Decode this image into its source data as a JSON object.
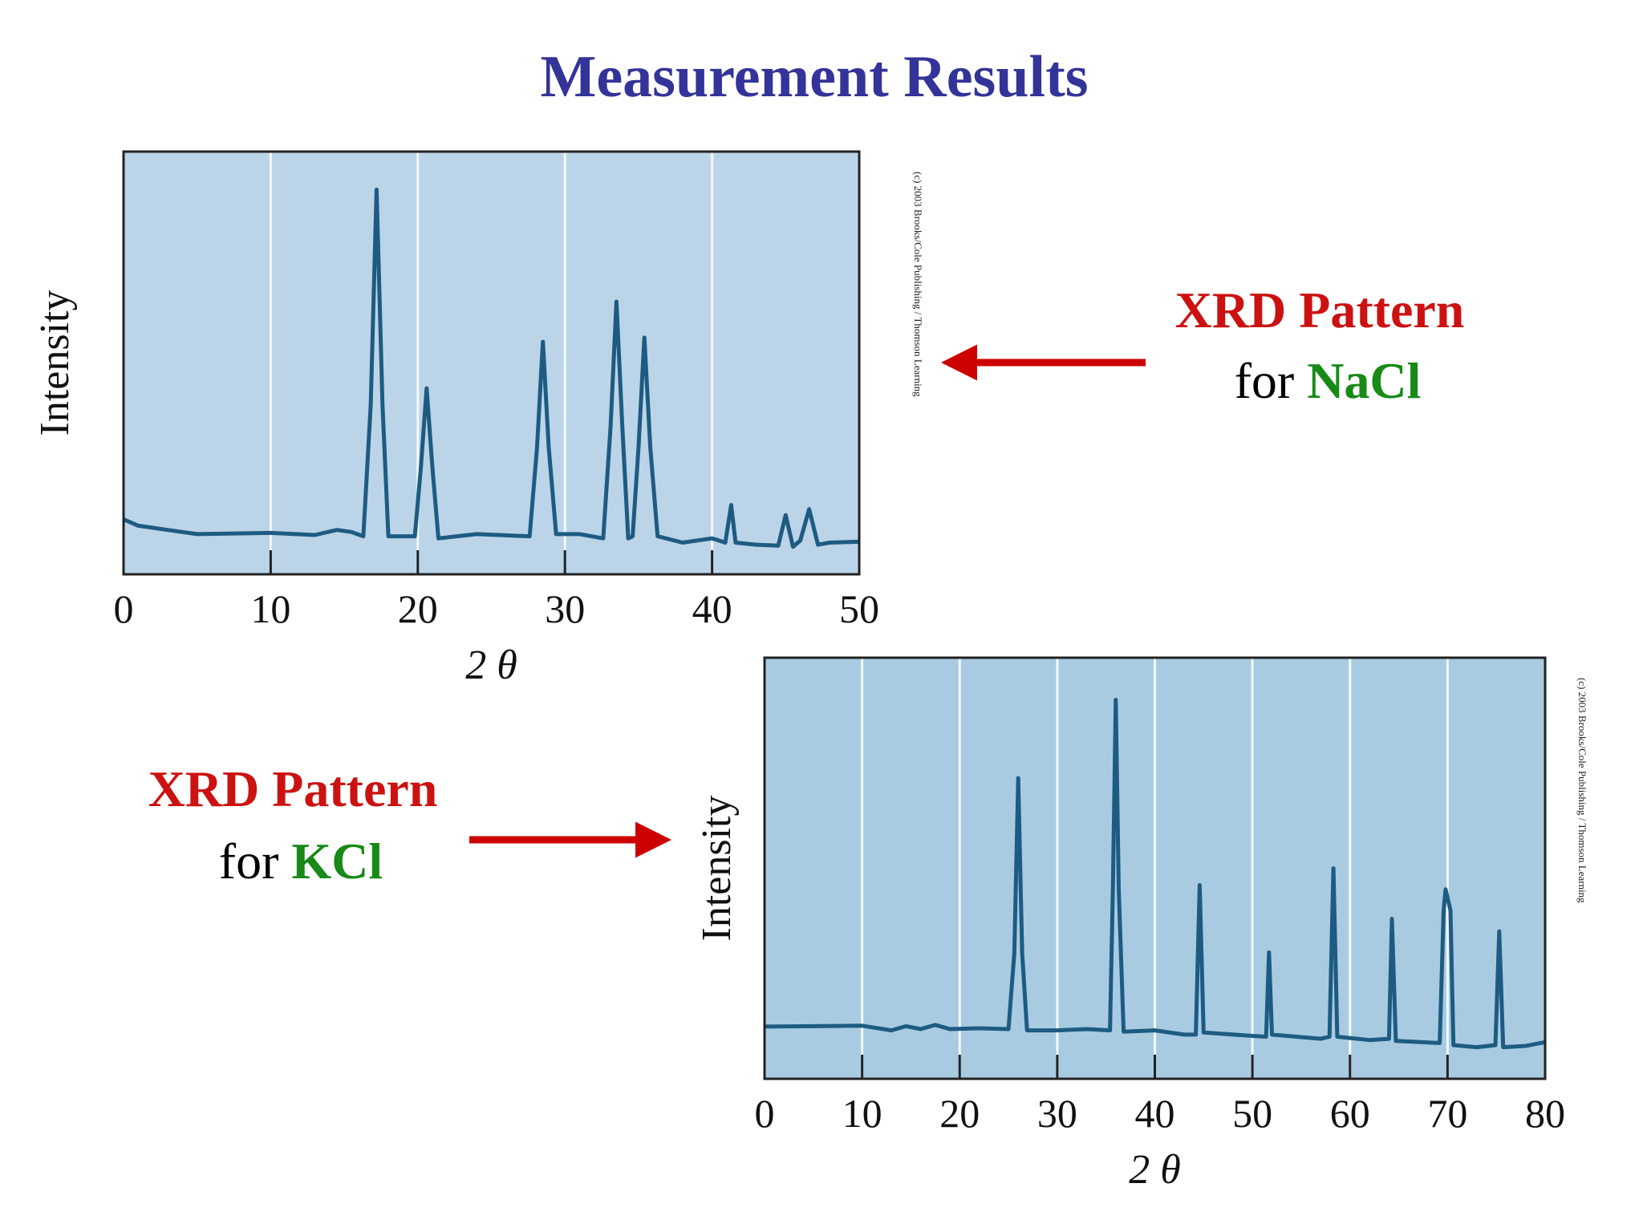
{
  "title": "Measurement Results",
  "annotations": [
    {
      "label": "XRD Pattern",
      "prefix": "for",
      "compound": "NaCl"
    },
    {
      "label": "XRD Pattern",
      "prefix": "for",
      "compound": "KCl"
    }
  ],
  "chart_data": [
    {
      "type": "line",
      "ylabel": "Intensity",
      "xlabel": "2 θ",
      "credit": "(c) 2003 Brooks/Cole Publishing / Thomson Learning",
      "color": "#1d5b82",
      "background": "#bcd4e7",
      "grid": true,
      "xlim": [
        0,
        50
      ],
      "xticks": [
        0,
        10,
        20,
        30,
        40,
        50
      ],
      "ylim": [
        0,
        100
      ],
      "x": [
        0,
        1,
        3,
        5,
        10,
        13,
        14.5,
        15.5,
        16.3,
        16.8,
        17.2,
        17.6,
        18,
        19.8,
        20.2,
        20.6,
        21,
        21.4,
        24,
        27.6,
        28.1,
        28.5,
        28.9,
        29.4,
        31,
        32.6,
        33.1,
        33.5,
        33.9,
        34.3,
        34.6,
        35,
        35.4,
        35.8,
        36.3,
        38,
        40,
        40.9,
        41.3,
        41.6,
        43,
        44.5,
        45,
        45.5,
        46,
        46.6,
        47.2,
        48,
        50
      ],
      "values": [
        13,
        11.5,
        10.5,
        9.5,
        9.8,
        9.3,
        10.5,
        10,
        9,
        40,
        91,
        40,
        9,
        9,
        25,
        44,
        25,
        8.5,
        9.5,
        9,
        30,
        55,
        30,
        9.5,
        9.5,
        8.5,
        35,
        64.5,
        35,
        8.5,
        9,
        30,
        56,
        30,
        9,
        7.5,
        8.5,
        7.5,
        16.4,
        7.5,
        7,
        6.8,
        14,
        6.5,
        8,
        15.4,
        7,
        7.5,
        7.7
      ]
    },
    {
      "type": "line",
      "ylabel": "Intensity",
      "xlabel": "2 θ",
      "credit": "(c) 2003 Brooks/Cole Publishing / Thomson Learning",
      "color": "#1d5b82",
      "background": "#a9cbe1",
      "grid": true,
      "xlim": [
        0,
        80
      ],
      "xticks": [
        0,
        10,
        20,
        30,
        40,
        50,
        60,
        70,
        80
      ],
      "ylim": [
        0,
        100
      ],
      "x": [
        0,
        10,
        13,
        14.5,
        16,
        17.5,
        19,
        22,
        25,
        25.6,
        26,
        26.4,
        26.9,
        30,
        33,
        35.4,
        35.7,
        36,
        36.3,
        36.8,
        40,
        43,
        44.2,
        44.6,
        45,
        50,
        51.4,
        51.7,
        52,
        57,
        57.9,
        58.3,
        58.7,
        62,
        64,
        64.3,
        64.7,
        69.2,
        69.6,
        69.8,
        70.3,
        70.6,
        73,
        74.9,
        75.3,
        75.7,
        78,
        80
      ],
      "values": [
        12.4,
        12.6,
        11.5,
        12.5,
        11.8,
        12.8,
        11.8,
        12,
        11.8,
        30,
        71.4,
        30,
        11.5,
        11.5,
        11.8,
        11.5,
        45,
        90,
        45,
        11.2,
        11.5,
        10.5,
        10.5,
        46,
        11,
        10.2,
        10,
        30,
        10.5,
        9.5,
        10,
        50,
        10,
        9.2,
        9.5,
        38,
        9,
        8.5,
        40,
        45,
        40,
        8,
        7.5,
        8,
        35,
        7.5,
        7.8,
        8.7
      ]
    }
  ]
}
